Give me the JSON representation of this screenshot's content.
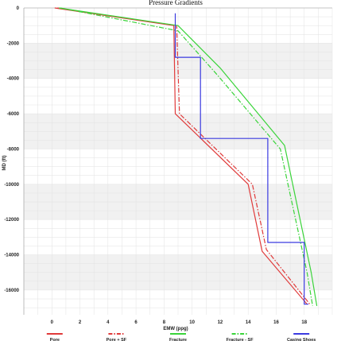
{
  "chart_data": {
    "type": "line",
    "title": "Pressure Gradients",
    "xlabel": "EMW (ppg)",
    "ylabel": "MD (ft)",
    "xlim": [
      -2,
      20
    ],
    "ylim": [
      0,
      17400
    ],
    "y_inverted": true,
    "x_ticks": [
      0,
      2,
      4,
      6,
      8,
      10,
      12,
      14,
      16,
      18
    ],
    "y_ticks": [
      0,
      2000,
      4000,
      6000,
      8000,
      10000,
      12000,
      14000,
      16000
    ],
    "y_tick_labels": [
      "0",
      "-2000",
      "-4000",
      "-6000",
      "-8000",
      "-10000",
      "-12000",
      "-14000",
      "-16000"
    ],
    "grid": true,
    "alternating_bands": true,
    "legend_position": "bottom",
    "series": [
      {
        "name": "Pore",
        "color": "#e03a3a",
        "style": "solid",
        "points": [
          [
            0.2,
            0
          ],
          [
            8.7,
            1000
          ],
          [
            8.8,
            6000
          ],
          [
            14.0,
            10000
          ],
          [
            15.0,
            13800
          ],
          [
            18.2,
            16800
          ]
        ]
      },
      {
        "name": "Pore + SF",
        "color": "#e03a3a",
        "style": "dashdot",
        "points": [
          [
            0.4,
            0
          ],
          [
            8.9,
            1000
          ],
          [
            9.1,
            6000
          ],
          [
            14.3,
            10000
          ],
          [
            15.3,
            13700
          ],
          [
            18.4,
            16800
          ]
        ]
      },
      {
        "name": "Fracture",
        "color": "#3ad43a",
        "style": "solid",
        "points": [
          [
            0.5,
            0
          ],
          [
            9.0,
            1000
          ],
          [
            12.0,
            3400
          ],
          [
            16.6,
            7800
          ],
          [
            18.5,
            15000
          ],
          [
            18.9,
            16900
          ]
        ]
      },
      {
        "name": "Fracture - SF",
        "color": "#3ad43a",
        "style": "dashdot",
        "points": [
          [
            0.6,
            0
          ],
          [
            9.0,
            1300
          ],
          [
            11.8,
            3800
          ],
          [
            16.3,
            8000
          ],
          [
            18.2,
            15000
          ],
          [
            18.6,
            16900
          ]
        ]
      },
      {
        "name": "Casing Shoes",
        "color": "#3a3ae0",
        "style": "solid",
        "points": [
          [
            8.8,
            300
          ],
          [
            8.8,
            2800
          ],
          [
            10.6,
            2800
          ],
          [
            10.6,
            7400
          ],
          [
            15.4,
            7400
          ],
          [
            15.4,
            13300
          ],
          [
            18.0,
            13300
          ],
          [
            18.0,
            16800
          ],
          [
            18.3,
            16800
          ]
        ]
      }
    ]
  }
}
